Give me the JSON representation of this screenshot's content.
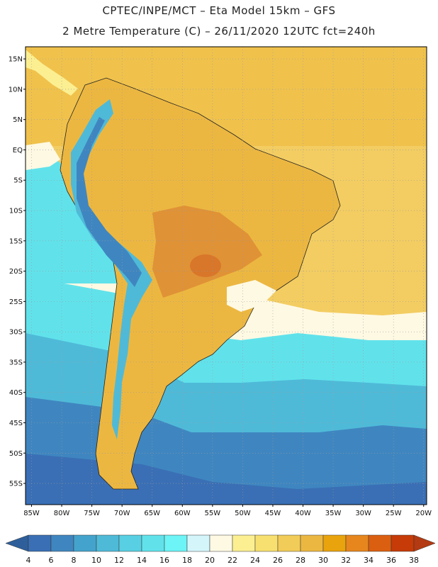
{
  "title_line1": "CPTEC/INPE/MCT –  Eta Model 15km – GFS",
  "title_line2": "2 Metre Temperature (C) – 26/11/2020 12UTC fct=240h",
  "latitude_labels": [
    "15N",
    "10N",
    "5N",
    "EQ",
    "5S",
    "10S",
    "15S",
    "20S",
    "25S",
    "30S",
    "35S",
    "40S",
    "45S",
    "50S",
    "55S"
  ],
  "longitude_labels": [
    "85W",
    "80W",
    "75W",
    "70W",
    "65W",
    "60W",
    "55W",
    "50W",
    "45W",
    "40W",
    "35W",
    "30W",
    "25W",
    "20W"
  ],
  "colorbar": {
    "labels": [
      "4",
      "6",
      "8",
      "10",
      "12",
      "14",
      "16",
      "18",
      "20",
      "22",
      "24",
      "26",
      "28",
      "30",
      "32",
      "34",
      "36",
      "38"
    ],
    "colors": [
      "#3a6fb5",
      "#3f86c0",
      "#44a3cc",
      "#4fbad8",
      "#58cfe2",
      "#61e2eb",
      "#6cf4f6",
      "#d4f6fb",
      "#fef9e3",
      "#fbef92",
      "#f8e070",
      "#f2cc58",
      "#ecb741",
      "#e9a30c",
      "#e6861d",
      "#db5f10",
      "#c63b08"
    ],
    "under_color": "#2e5f9a",
    "over_color": "#b33a12"
  },
  "map_colors": {
    "ocean_warm": "#f3cd62",
    "ocean_warm_north": "#f0c24c",
    "amazon": "#ecb741",
    "hot_core": "#e09236",
    "andes_cold": "#4fbad8",
    "andes_highcold": "#3f86c0",
    "south_ocean_1": "#61e2eb",
    "south_ocean_2": "#4fbad8",
    "south_ocean_3": "#3f86c0",
    "south_ocean_4": "#3a6fb5",
    "pale": "#fef9e3",
    "light_yellow": "#fbef92"
  }
}
